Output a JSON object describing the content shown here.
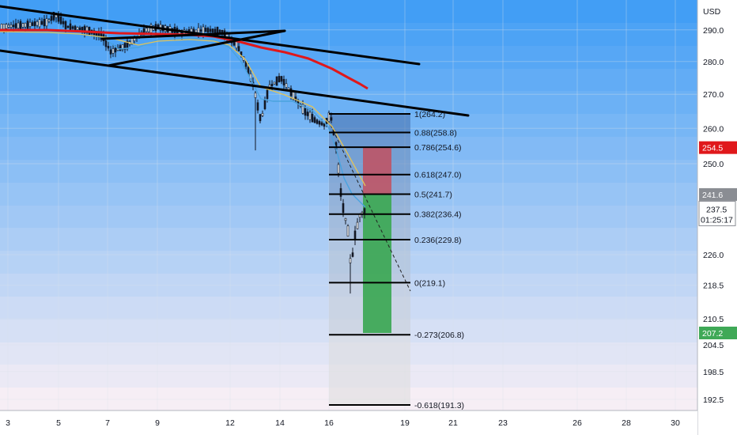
{
  "currency_label": "USD",
  "colors": {
    "background": "#ffffff",
    "grid": "#d9e1ea",
    "candle": "#131722",
    "ema_fast": "#4aa3df",
    "ema_slow": "#e0c35c",
    "sma_red": "#e0181b",
    "trendline": "#000000",
    "fib_line": "#000000",
    "stop_zone": "#c2505f",
    "target_zone": "#3fa957",
    "tag_red": "#e0181b",
    "tag_green": "#3fa957",
    "tag_gray": "#8a8d93"
  },
  "chart_data": {
    "type": "candlestick",
    "y_scale": "log",
    "ylim": [
      191.3,
      300
    ],
    "x_tick_labels": [
      "3",
      "5",
      "7",
      "9",
      "12",
      "14",
      "16",
      "19",
      "21",
      "23",
      "26",
      "28",
      "30"
    ],
    "y_tick_labels": [
      "290.0",
      "280.0",
      "270.0",
      "260.0",
      "250.0",
      "226.0",
      "218.5",
      "210.5",
      "204.5",
      "198.5",
      "192.5"
    ],
    "fib_levels": [
      {
        "ratio": "1",
        "price": 264.2,
        "label": "1(264.2)"
      },
      {
        "ratio": "0.88",
        "price": 258.8,
        "label": "0.88(258.8)"
      },
      {
        "ratio": "0.786",
        "price": 254.6,
        "label": "0.786(254.6)"
      },
      {
        "ratio": "0.618",
        "price": 247.0,
        "label": "0.618(247.0)"
      },
      {
        "ratio": "0.5",
        "price": 241.7,
        "label": "0.5(241.7)"
      },
      {
        "ratio": "0.382",
        "price": 236.4,
        "label": "0.382(236.4)"
      },
      {
        "ratio": "0.236",
        "price": 229.8,
        "label": "0.236(229.8)"
      },
      {
        "ratio": "0",
        "price": 219.1,
        "label": "0(219.1)"
      },
      {
        "ratio": "-0.273",
        "price": 206.8,
        "label": "-0.273(206.8)"
      },
      {
        "ratio": "-0.618",
        "price": 191.3,
        "label": "-0.618(191.3)"
      }
    ],
    "position": {
      "entry": 241.6,
      "stop": 254.5,
      "target": 207.2
    },
    "price_tags": [
      {
        "text": "254.5",
        "price": 254.5,
        "kind": "red"
      },
      {
        "text": "241.6",
        "price": 241.6,
        "kind": "gray"
      },
      {
        "text": "207.2",
        "price": 207.2,
        "kind": "green"
      }
    ],
    "current_price": {
      "price": "237.5",
      "countdown": "01:25:17"
    }
  }
}
